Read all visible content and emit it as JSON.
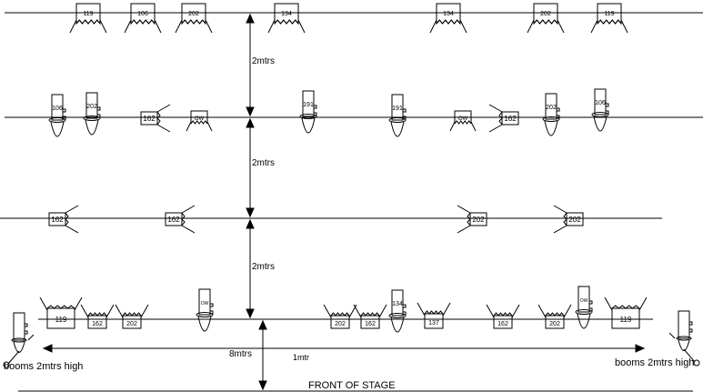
{
  "labels": {
    "gap1": "2mtrs",
    "gap2": "2mtrs",
    "gap3": "2mtrs",
    "width": "8mtrs",
    "front_gap": "1mtr",
    "booms_left": "booms 2mtrs high",
    "booms_right": "booms 2mtrs high",
    "front": "FRONT OF STAGE"
  },
  "bar1_flood_labels": [
    "119",
    "106",
    "202",
    "134",
    "134",
    "202",
    "119"
  ],
  "bar2_profile_labels": [
    "106",
    "202",
    "191",
    "191",
    "202",
    "106"
  ],
  "bar2_fresnel_labels": [
    "162",
    "OW",
    "OW",
    "162"
  ],
  "bar3_side_labels": [
    "162",
    "162",
    "202",
    "202"
  ],
  "bar4_flood_labels": [
    "119",
    "162",
    "202",
    "202",
    "162",
    "137",
    "162",
    "202",
    "119"
  ],
  "bar4_profile_labels": [
    "OW",
    "134",
    "OW"
  ]
}
